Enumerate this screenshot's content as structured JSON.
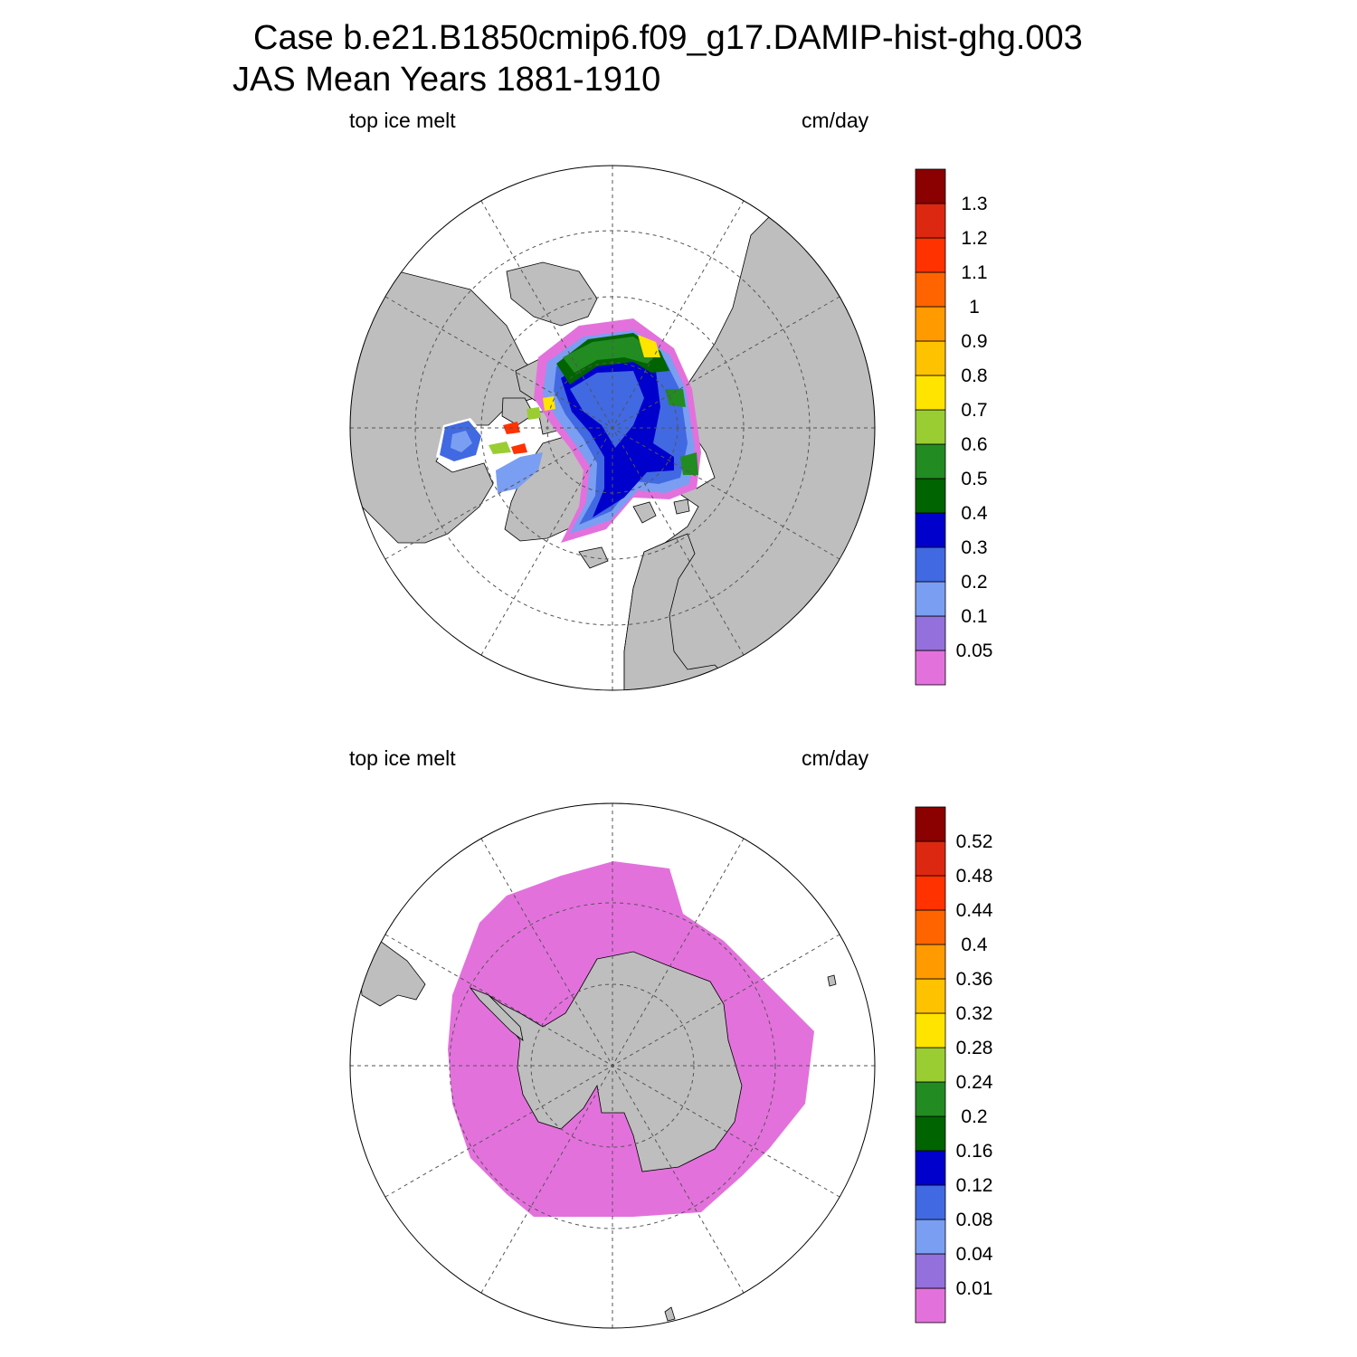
{
  "title": {
    "line1": "Case b.e21.B1850cmip6.f09_g17.DAMIP-hist-ghg.003",
    "line2": "JAS Mean   Years 1881-1910"
  },
  "colors": {
    "land": "#bebebe",
    "ocean": "#ffffff",
    "palette": [
      "#e371dc",
      "#9370db",
      "#7a9ef2",
      "#4169e1",
      "#0000cd",
      "#006400",
      "#228b22",
      "#9acd32",
      "#ffe400",
      "#ffc200",
      "#ff9a00",
      "#ff6400",
      "#ff3200",
      "#dc2810",
      "#8b0000"
    ]
  },
  "panels": [
    {
      "id": "north",
      "hemisphere": "Northern",
      "variable_label": "top ice melt",
      "units_label": "cm/day",
      "colorbar_levels": [
        "0.05",
        "0.1",
        "0.2",
        "0.3",
        "0.4",
        "0.5",
        "0.6",
        "0.7",
        "0.8",
        "0.9",
        "1",
        "1.1",
        "1.2",
        "1.3"
      ]
    },
    {
      "id": "south",
      "hemisphere": "Southern",
      "variable_label": "top ice melt",
      "units_label": "cm/day",
      "colorbar_levels": [
        "0.01",
        "0.04",
        "0.08",
        "0.12",
        "0.16",
        "0.2",
        "0.24",
        "0.28",
        "0.32",
        "0.36",
        "0.4",
        "0.44",
        "0.48",
        "0.52"
      ]
    }
  ]
}
